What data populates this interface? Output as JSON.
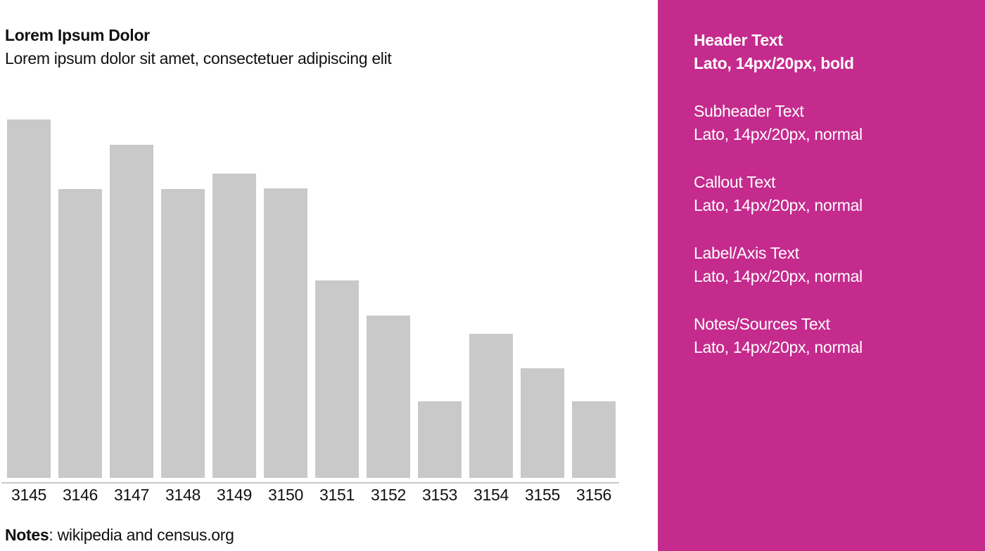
{
  "chart": {
    "title": "Lorem Ipsum Dolor",
    "subtitle": "Lorem ipsum dolor sit amet, consectetuer adipiscing elit",
    "notes_label": "Notes",
    "notes_text": ": wikipedia and census.org",
    "axis_line_color": "#c8c8c8",
    "text_color": "#111111"
  },
  "chart_data": {
    "type": "bar",
    "title": "Lorem Ipsum Dolor",
    "subtitle": "Lorem ipsum dolor sit amet, consectetuer adipiscing elit",
    "categories": [
      "3145",
      "3146",
      "3147",
      "3148",
      "3149",
      "3150",
      "3151",
      "3152",
      "3153",
      "3154",
      "3155",
      "3156"
    ],
    "values": [
      100,
      80.6,
      92.9,
      80.6,
      84.9,
      80.8,
      55.1,
      45.3,
      21.4,
      40.2,
      30.6,
      21.4
    ],
    "xlabel": "",
    "ylabel": "",
    "ylim": [
      0,
      100
    ],
    "grid": false,
    "legend": false,
    "y_axis_shown": false,
    "values_note": "no y-axis shown; values estimated as percent of tallest bar",
    "bar_color": "#c9c9c9",
    "notes": "Notes: wikipedia and census.org"
  },
  "style_panel": {
    "bg": "#c42b8d",
    "text_color": "#ffffff",
    "groups": [
      {
        "label": "Header Text",
        "spec": "Lato, 14px/20px, bold"
      },
      {
        "label": "Subheader Text",
        "spec": "Lato, 14px/20px, normal"
      },
      {
        "label": "Callout Text",
        "spec": "Lato, 14px/20px, normal"
      },
      {
        "label": "Label/Axis Text",
        "spec": "Lato, 14px/20px, normal"
      },
      {
        "label": "Notes/Sources Text",
        "spec": "Lato, 14px/20px, normal"
      }
    ]
  }
}
